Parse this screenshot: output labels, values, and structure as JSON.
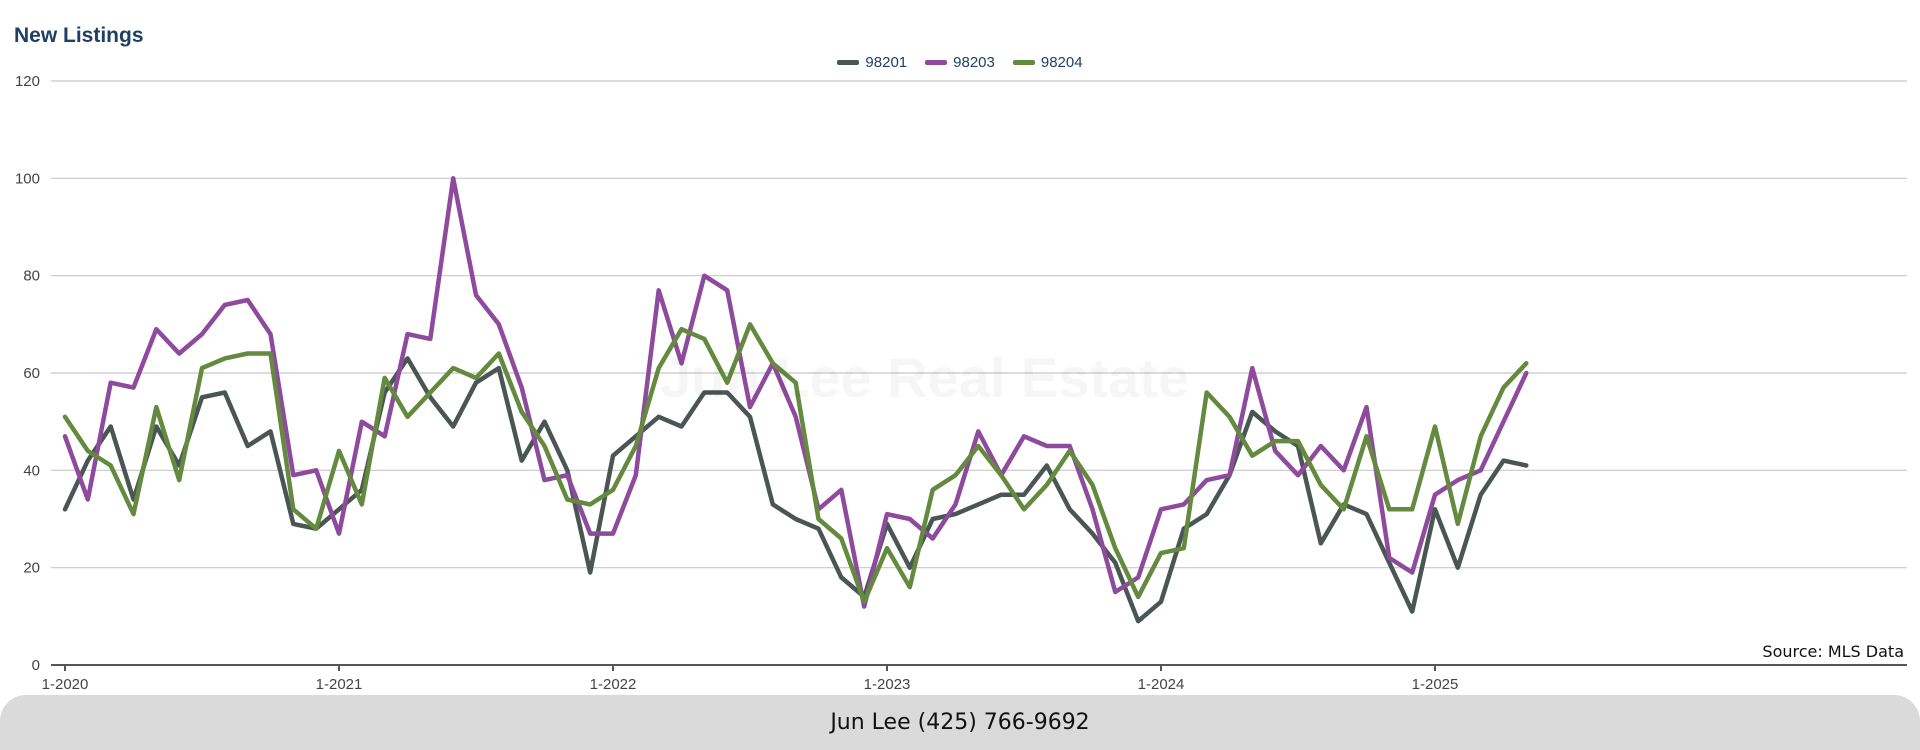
{
  "chart_data": {
    "type": "line",
    "title": "New Listings",
    "xlabel": "",
    "ylabel": "",
    "ylim": [
      0,
      120
    ],
    "y_ticks": [
      0,
      20,
      40,
      60,
      80,
      100,
      120
    ],
    "x_tick_labels": [
      "1-2020",
      "1-2021",
      "1-2022",
      "1-2023",
      "1-2024",
      "1-2025"
    ],
    "x_tick_months": [
      0,
      12,
      24,
      36,
      48,
      60
    ],
    "x_months": 65,
    "grid": true,
    "legend_position": "top-center",
    "series": [
      {
        "name": "98201",
        "color": "#4a5654",
        "values": [
          32,
          42,
          49,
          34,
          49,
          41,
          55,
          56,
          45,
          48,
          29,
          28,
          32,
          36,
          56,
          63,
          55,
          49,
          58,
          61,
          42,
          50,
          40,
          19,
          43,
          47,
          51,
          49,
          56,
          56,
          51,
          33,
          30,
          28,
          18,
          14,
          29,
          20,
          30,
          31,
          33,
          35,
          35,
          41,
          32,
          27,
          21,
          9,
          13,
          28,
          31,
          39,
          52,
          48,
          45,
          25,
          33,
          31,
          21,
          11,
          32,
          20,
          35,
          42,
          41
        ]
      },
      {
        "name": "98203",
        "color": "#8e4a9c",
        "values": [
          47,
          34,
          58,
          57,
          69,
          64,
          68,
          74,
          75,
          68,
          39,
          40,
          27,
          50,
          47,
          68,
          67,
          100,
          76,
          70,
          57,
          38,
          39,
          27,
          27,
          39,
          77,
          62,
          80,
          77,
          53,
          62,
          51,
          32,
          36,
          12,
          31,
          30,
          26,
          33,
          48,
          39,
          47,
          45,
          45,
          32,
          15,
          18,
          32,
          33,
          38,
          39,
          61,
          44,
          39,
          45,
          40,
          53,
          22,
          19,
          35,
          38,
          40,
          50,
          60
        ]
      },
      {
        "name": "98204",
        "color": "#638a3e",
        "values": [
          51,
          44,
          41,
          31,
          53,
          38,
          61,
          63,
          64,
          64,
          32,
          28,
          44,
          33,
          59,
          51,
          56,
          61,
          59,
          64,
          52,
          45,
          34,
          33,
          36,
          45,
          61,
          69,
          67,
          58,
          70,
          62,
          58,
          30,
          26,
          13,
          24,
          16,
          36,
          39,
          45,
          39,
          32,
          37,
          44,
          37,
          24,
          14,
          23,
          24,
          56,
          51,
          43,
          46,
          46,
          37,
          32,
          47,
          32,
          32,
          49,
          29,
          47,
          57,
          62
        ]
      }
    ]
  },
  "watermark": "Jun Lee Real Estate",
  "source_note": "Source: MLS Data",
  "footer": {
    "text": "Jun Lee (425) 766-9692"
  }
}
